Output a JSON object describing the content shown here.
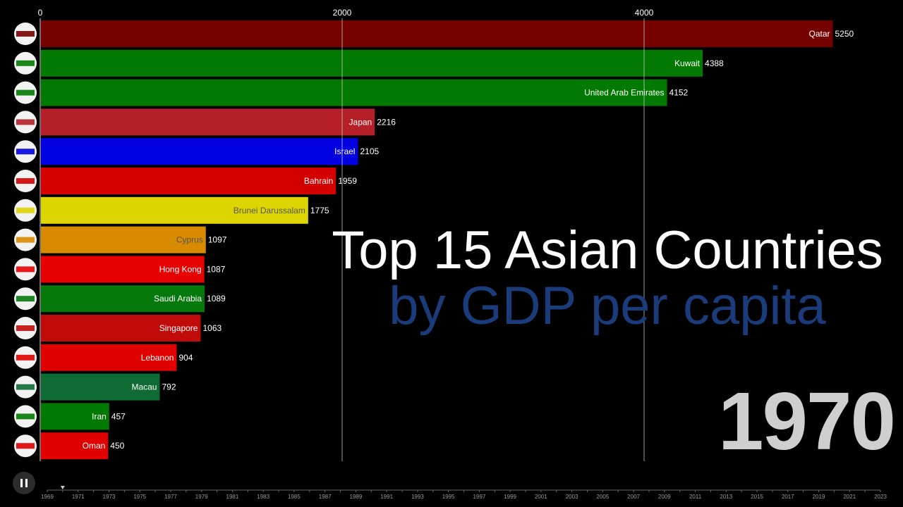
{
  "chart_data": {
    "type": "bar",
    "title": "Top 15 Asian Countries",
    "subtitle": "by GDP per capita",
    "year": "1970",
    "x_axis": {
      "range": [
        0,
        5250
      ],
      "ticks": [
        0,
        2000,
        4000
      ],
      "position": "top",
      "grid": true
    },
    "bars": [
      {
        "label": "Qatar",
        "value": 5250,
        "color": "#750000",
        "flag": "flag-qatar-icon"
      },
      {
        "label": "Kuwait",
        "value": 4388,
        "color": "#027a02",
        "flag": "flag-kuwait-icon"
      },
      {
        "label": "United Arab Emirates",
        "value": 4152,
        "color": "#027a02",
        "flag": "flag-uae-icon"
      },
      {
        "label": "Japan",
        "value": 2216,
        "color": "#b51f28",
        "flag": "flag-japan-icon"
      },
      {
        "label": "Israel",
        "value": 2105,
        "color": "#0000e0",
        "flag": "flag-israel-icon"
      },
      {
        "label": "Bahrain",
        "value": 1959,
        "color": "#d40000",
        "flag": "flag-bahrain-icon"
      },
      {
        "label": "Brunei Darussalam",
        "value": 1775,
        "color": "#dcd500",
        "flag": "flag-brunei-icon"
      },
      {
        "label": "Cyprus",
        "value": 1097,
        "color": "#d88a00",
        "flag": "flag-cyprus-icon"
      },
      {
        "label": "Hong Kong",
        "value": 1087,
        "color": "#e60000",
        "flag": "flag-hong-kong-icon"
      },
      {
        "label": "Saudi Arabia",
        "value": 1089,
        "color": "#05780c",
        "flag": "flag-saudi-arabia-icon"
      },
      {
        "label": "Singapore",
        "value": 1063,
        "color": "#c10b0b",
        "flag": "flag-singapore-icon"
      },
      {
        "label": "Lebanon",
        "value": 904,
        "color": "#e00000",
        "flag": "flag-lebanon-icon"
      },
      {
        "label": "Macau",
        "value": 792,
        "color": "#0e6b34",
        "flag": "flag-macau-icon"
      },
      {
        "label": "Iran",
        "value": 457,
        "color": "#027a02",
        "flag": "flag-iran-icon"
      },
      {
        "label": "Oman",
        "value": 450,
        "color": "#e00000",
        "flag": "flag-oman-icon"
      }
    ]
  },
  "timeline": {
    "years": [
      "1969",
      "1971",
      "1973",
      "1975",
      "1977",
      "1979",
      "1981",
      "1983",
      "1985",
      "1987",
      "1989",
      "1991",
      "1993",
      "1995",
      "1997",
      "1999",
      "2001",
      "2003",
      "2005",
      "2007",
      "2009",
      "2011",
      "2013",
      "2015",
      "2017",
      "2019",
      "2021",
      "2023"
    ],
    "start": 1969,
    "end": 2023,
    "current": 1970
  },
  "controls": {
    "pause_icon": "pause-icon"
  }
}
